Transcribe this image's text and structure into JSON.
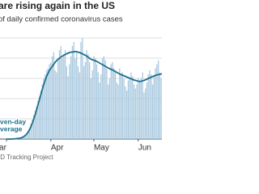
{
  "chart_data": {
    "type": "bar",
    "title": "are rising again in the US",
    "subtitle": "of daily confirmed coronavirus cases",
    "annotation": [
      "ven-day",
      "verage"
    ],
    "source": "ID Tracking Project",
    "categories": [
      "ar",
      null,
      null,
      null,
      null,
      null,
      null,
      null,
      null,
      null,
      null,
      null,
      null,
      null,
      null,
      null,
      null,
      null,
      null,
      null,
      null,
      null,
      null,
      null,
      null,
      null,
      null,
      null,
      null,
      null,
      null,
      "Apr",
      null,
      null,
      null,
      null,
      null,
      null,
      null,
      null,
      null,
      null,
      null,
      null,
      null,
      null,
      null,
      null,
      null,
      null,
      null,
      null,
      null,
      null,
      null,
      null,
      null,
      null,
      null,
      null,
      null,
      "May",
      null,
      null,
      null,
      null,
      null,
      null,
      null,
      null,
      null,
      null,
      null,
      null,
      null,
      null,
      null,
      null,
      null,
      null,
      null,
      null,
      null,
      null,
      null,
      null,
      null,
      null,
      null,
      null,
      null,
      null,
      "Jun",
      null,
      null,
      null,
      null,
      null,
      null,
      null,
      null,
      null,
      null,
      null,
      null,
      null,
      null,
      null,
      null,
      null
    ],
    "series": [
      {
        "type": "bar",
        "color": "#a9c9df",
        "values": [
          0,
          0,
          0,
          0,
          0.1,
          0.1,
          0.2,
          0.3,
          0.4,
          0.5,
          0.6,
          1,
          1.5,
          2.2,
          2.9,
          4,
          5.5,
          7.5,
          9.5,
          12,
          14,
          16,
          19,
          21,
          24,
          27,
          30,
          32,
          34,
          35,
          37,
          38,
          41,
          43,
          34,
          33,
          40,
          44,
          46,
          40,
          42,
          44,
          36,
          31,
          37,
          41,
          46,
          48,
          40,
          43,
          36,
          33,
          48,
          50,
          36,
          38,
          44,
          42,
          38,
          30,
          34,
          41,
          40,
          37,
          33,
          28,
          32,
          40,
          41,
          39,
          35,
          27,
          30,
          37,
          38,
          35,
          34,
          28,
          27,
          35,
          32,
          33,
          30,
          26,
          24,
          29,
          30,
          33,
          31,
          27,
          25,
          27,
          30,
          29,
          30,
          33,
          23,
          25,
          28,
          32,
          34,
          32,
          27,
          31,
          35,
          37,
          39,
          33,
          30,
          40
        ]
      },
      {
        "type": "line",
        "color": "#1f6f8b",
        "values": [
          0,
          0,
          0,
          0,
          0,
          0.1,
          0.1,
          0.2,
          0.3,
          0.4,
          0.5,
          0.8,
          1.2,
          1.7,
          2.4,
          3.3,
          4.5,
          6,
          7.8,
          9.8,
          12,
          14.5,
          17,
          19.5,
          22,
          24.5,
          27,
          29,
          31,
          32.5,
          34,
          35,
          36,
          37,
          38,
          38.8,
          39.5,
          40,
          40.6,
          41,
          41.5,
          41.8,
          42.2,
          42.5,
          42.8,
          43,
          43,
          43.2,
          43.3,
          43.2,
          43,
          42.8,
          42.5,
          42.2,
          41.8,
          41.5,
          41,
          40.5,
          40,
          39.5,
          39.2,
          39,
          38.7,
          38.4,
          38,
          37.6,
          37.2,
          36.8,
          36.4,
          36,
          35.6,
          35.2,
          34.8,
          34.5,
          34.2,
          33.8,
          33.4,
          33,
          32.6,
          32.2,
          31.9,
          31.6,
          31.3,
          31,
          30.7,
          30.4,
          30.1,
          29.8,
          29.5,
          29.2,
          29,
          28.8,
          28.6,
          28.5,
          28.6,
          28.8,
          29,
          29.3,
          29.6,
          30,
          30.3,
          30.6,
          30.9,
          31.2,
          31.5,
          31.7,
          31.9,
          32,
          32.2,
          32.4
        ]
      }
    ],
    "ylim": [
      0,
      50
    ],
    "yticks": [
      0,
      10,
      20,
      30,
      40,
      50
    ],
    "grid": true
  }
}
